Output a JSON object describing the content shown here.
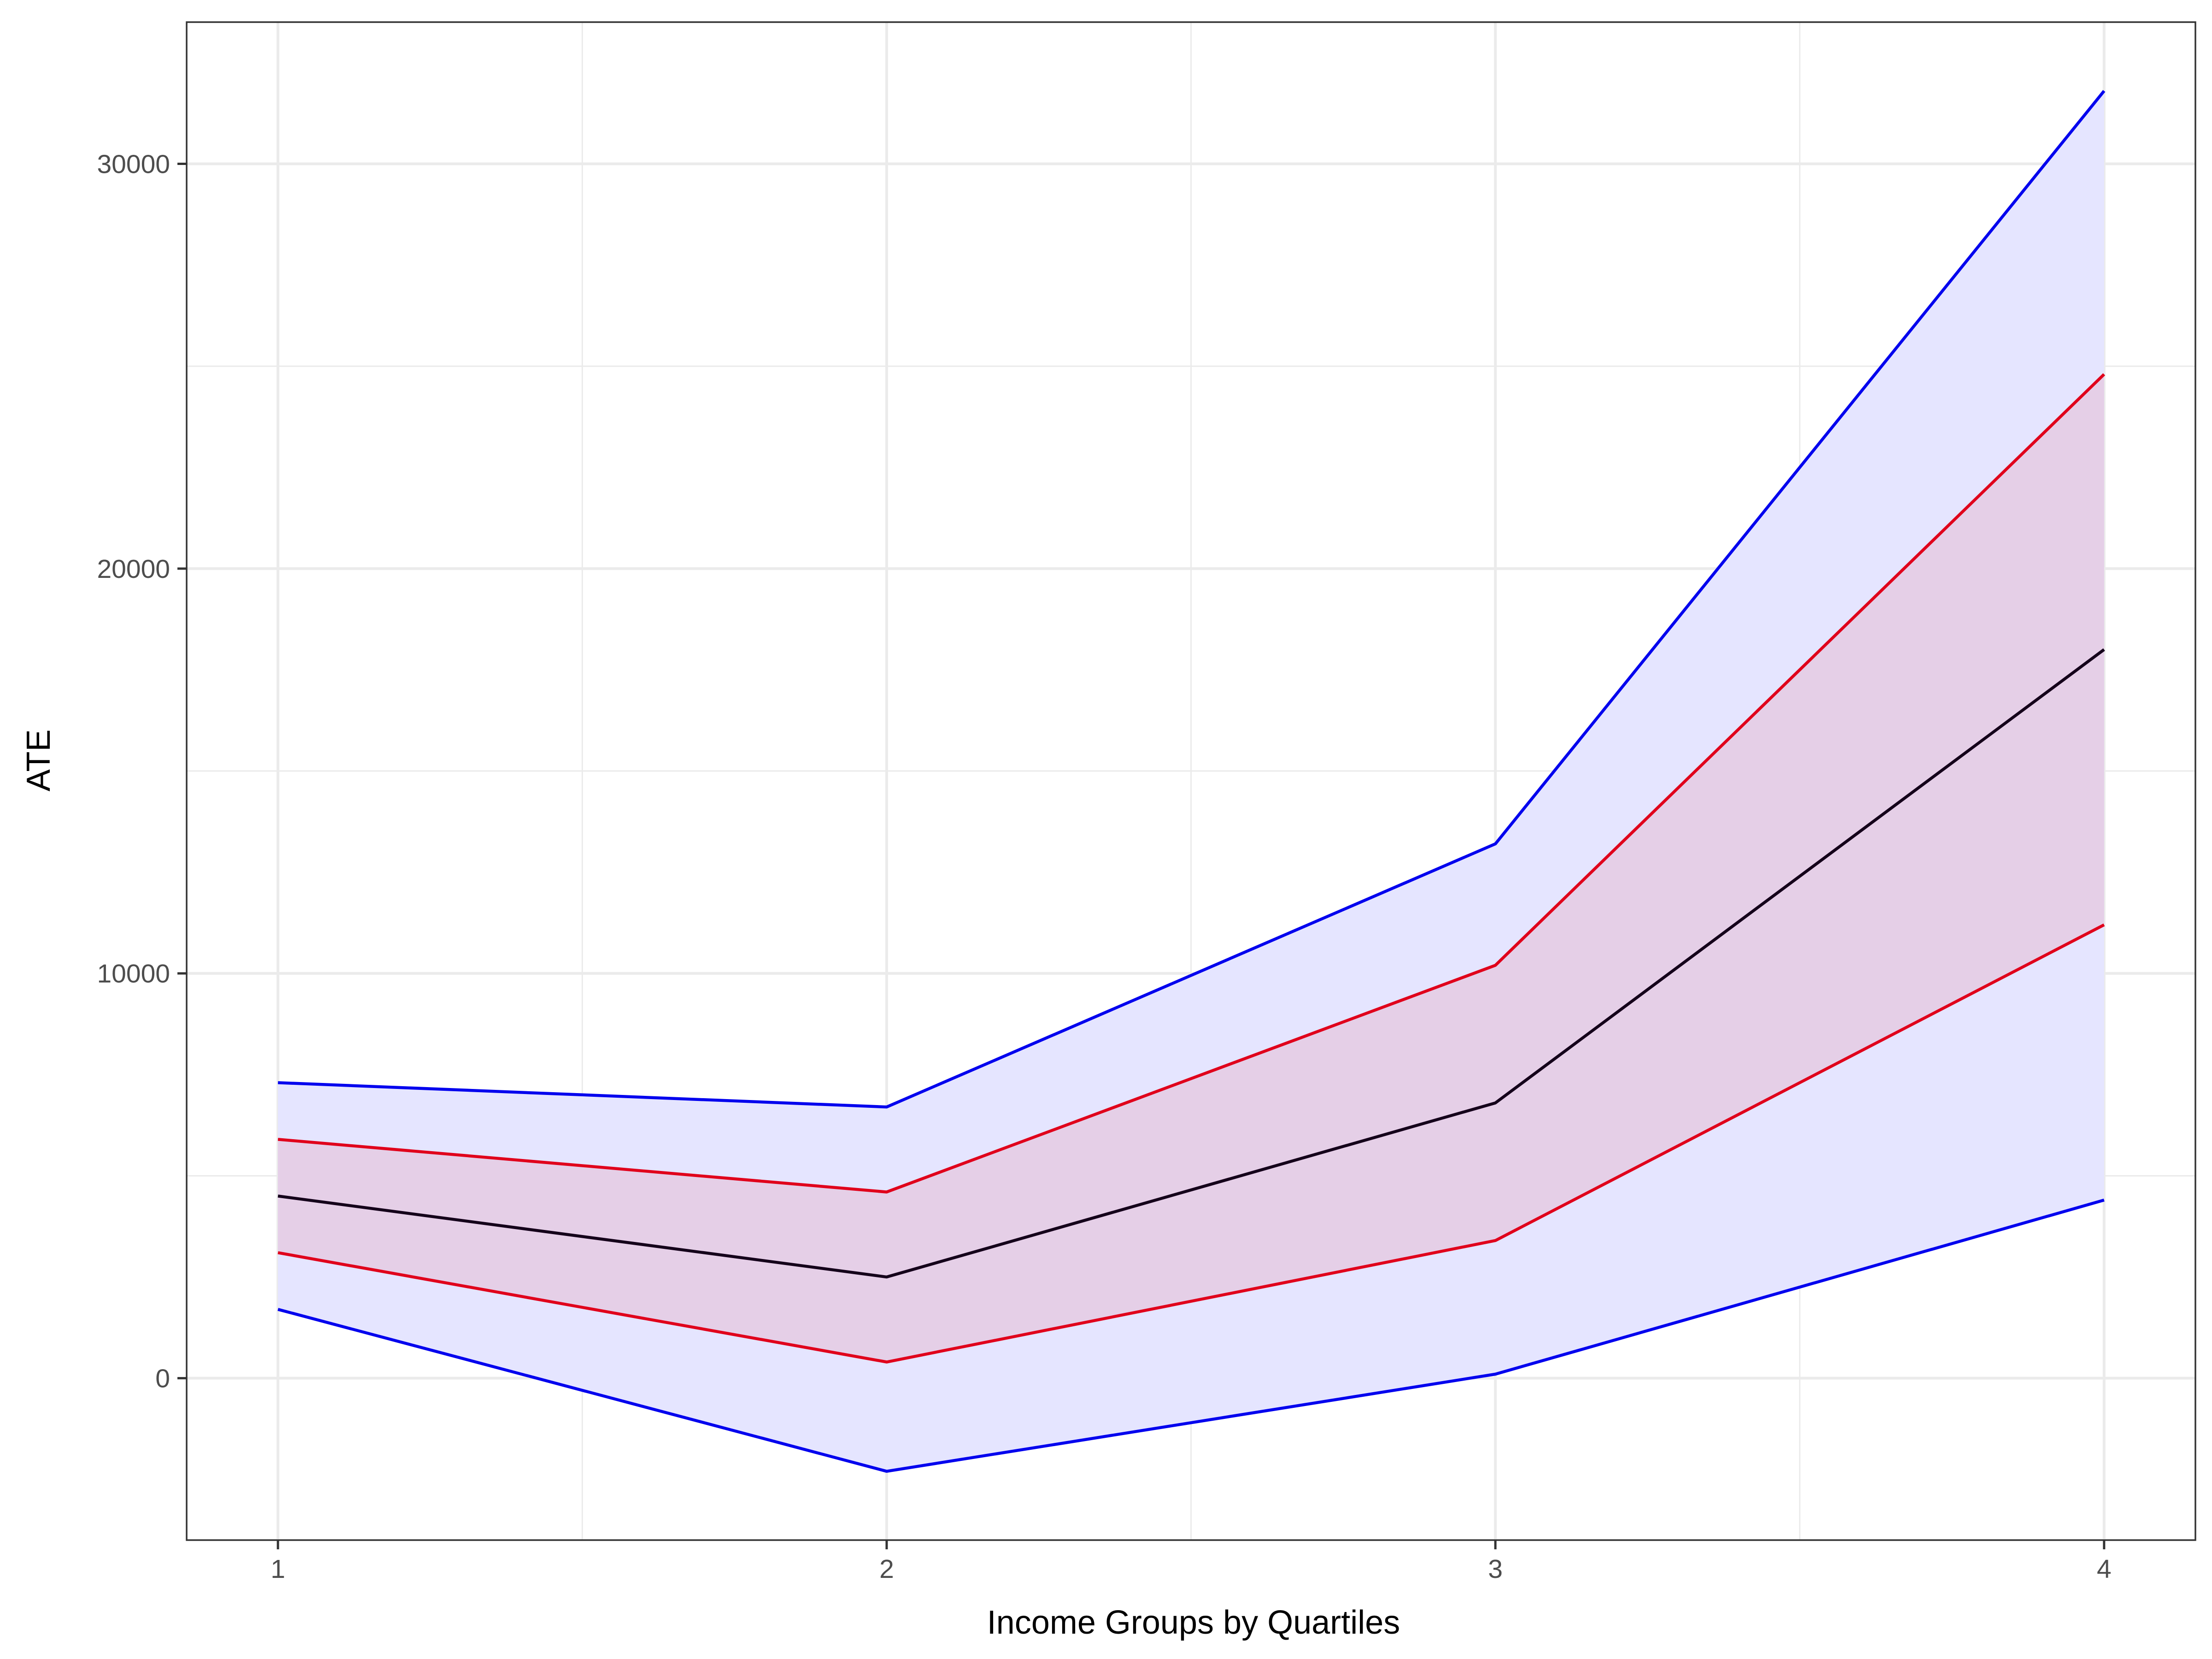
{
  "chart_data": {
    "type": "line",
    "title": "",
    "xlabel": "Income Groups by Quartiles",
    "ylabel": "ATE",
    "x": [
      1,
      2,
      3,
      4
    ],
    "xticks": [
      "1",
      "2",
      "3",
      "4"
    ],
    "yticks": [
      "0",
      "10000",
      "20000",
      "30000"
    ],
    "xlim": [
      0.85,
      4.15
    ],
    "ylim": [
      -4000,
      33500
    ],
    "grid": true,
    "legend": "none",
    "bands": [
      {
        "fill": "#e5e5ff",
        "lower": [
          1700,
          -2300,
          100,
          4400
        ],
        "upper": [
          7300,
          6700,
          13200,
          31800
        ]
      },
      {
        "fill": "#e5cfe7",
        "lower": [
          3100,
          400,
          3400,
          11200
        ],
        "upper": [
          5900,
          4600,
          10200,
          24800
        ]
      }
    ],
    "series": [
      {
        "color": "#0000ee",
        "values": [
          7300,
          6700,
          13200,
          31800
        ]
      },
      {
        "color": "#0000ee",
        "values": [
          1700,
          -2300,
          100,
          4400
        ]
      },
      {
        "color": "#e0001b",
        "values": [
          5900,
          4600,
          10200,
          24800
        ]
      },
      {
        "color": "#e0001b",
        "values": [
          3100,
          400,
          3400,
          11200
        ]
      },
      {
        "color": "#14001a",
        "values": [
          4500,
          2500,
          6800,
          18000
        ]
      }
    ]
  }
}
